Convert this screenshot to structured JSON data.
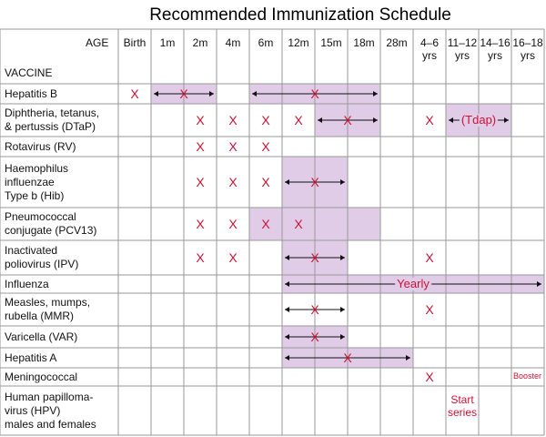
{
  "title": "Recommended Immunization Schedule",
  "header": {
    "age_label": "AGE",
    "vaccine_label": "VACCINE",
    "ages": [
      {
        "l1": "Birth",
        "l2": ""
      },
      {
        "l1": "1m",
        "l2": ""
      },
      {
        "l1": "2m",
        "l2": ""
      },
      {
        "l1": "4m",
        "l2": ""
      },
      {
        "l1": "6m",
        "l2": ""
      },
      {
        "l1": "12m",
        "l2": ""
      },
      {
        "l1": "15m",
        "l2": ""
      },
      {
        "l1": "18m",
        "l2": ""
      },
      {
        "l1": "28m",
        "l2": ""
      },
      {
        "l1": "4–6",
        "l2": "yrs"
      },
      {
        "l1": "11–12",
        "l2": "yrs"
      },
      {
        "l1": "14–16",
        "l2": "yrs"
      },
      {
        "l1": "16–18",
        "l2": "yrs"
      }
    ]
  },
  "colors": {
    "band": "#e1cce8",
    "mark": "#cc1133",
    "grid": "#999999"
  },
  "vaccines": [
    {
      "name": [
        "Hepatitis B"
      ],
      "bands": [
        [
          1,
          2
        ],
        [
          4,
          7
        ]
      ],
      "arrows": [
        [
          1,
          2
        ],
        [
          4,
          7
        ]
      ],
      "marks": [
        {
          "col": 0,
          "text": "X"
        },
        {
          "col": 1.5,
          "text": "X"
        },
        {
          "col": 5.5,
          "text": "X"
        }
      ]
    },
    {
      "name": [
        "Diphtheria, tetanus,",
        "& pertussis (DTaP)"
      ],
      "bands": [
        [
          6,
          7
        ],
        [
          10,
          11
        ]
      ],
      "arrows": [
        [
          6,
          7
        ],
        [
          10,
          11
        ]
      ],
      "marks": [
        {
          "col": 2,
          "text": "X"
        },
        {
          "col": 3,
          "text": "X"
        },
        {
          "col": 4,
          "text": "X"
        },
        {
          "col": 5,
          "text": "X"
        },
        {
          "col": 6.5,
          "text": "X"
        },
        {
          "col": 9,
          "text": "X"
        },
        {
          "col": 10.5,
          "text": "(Tdap)",
          "band": true
        }
      ]
    },
    {
      "name": [
        "Rotavirus (RV)"
      ],
      "bands": [],
      "arrows": [],
      "marks": [
        {
          "col": 2,
          "text": "X"
        },
        {
          "col": 3,
          "text": "X"
        },
        {
          "col": 4,
          "text": "X"
        }
      ]
    },
    {
      "name": [
        "Haemophilus",
        "influenzae",
        "Type b (Hib)"
      ],
      "bands": [
        [
          5,
          6
        ]
      ],
      "arrows": [
        [
          5,
          6
        ]
      ],
      "marks": [
        {
          "col": 2,
          "text": "X"
        },
        {
          "col": 3,
          "text": "X"
        },
        {
          "col": 4,
          "text": "X"
        },
        {
          "col": 5.5,
          "text": "X"
        }
      ]
    },
    {
      "name": [
        "Pneumococcal",
        "conjugate (PCV13)"
      ],
      "bands": [
        [
          4,
          7
        ]
      ],
      "arrows": [],
      "marks": [
        {
          "col": 2,
          "text": "X"
        },
        {
          "col": 3,
          "text": "X"
        },
        {
          "col": 4,
          "text": "X"
        },
        {
          "col": 5,
          "text": "X"
        }
      ]
    },
    {
      "name": [
        "Inactivated",
        "poliovirus (IPV)"
      ],
      "bands": [
        [
          5,
          6
        ]
      ],
      "arrows": [
        [
          5,
          6
        ]
      ],
      "marks": [
        {
          "col": 2,
          "text": "X"
        },
        {
          "col": 3,
          "text": "X"
        },
        {
          "col": 5.5,
          "text": "X"
        },
        {
          "col": 9,
          "text": "X"
        }
      ]
    },
    {
      "name": [
        "Influenza"
      ],
      "bands": [
        [
          5,
          12
        ]
      ],
      "arrows": [
        [
          5,
          12
        ]
      ],
      "marks": [
        {
          "col": 8.5,
          "text": "Yearly",
          "band": true
        }
      ]
    },
    {
      "name": [
        "Measles, mumps,",
        "rubella (MMR)"
      ],
      "bands": [],
      "arrows": [
        [
          5,
          6
        ]
      ],
      "marks": [
        {
          "col": 5.5,
          "text": "X"
        },
        {
          "col": 9,
          "text": "X"
        }
      ]
    },
    {
      "name": [
        "Varicella (VAR)"
      ],
      "bands": [
        [
          5,
          6
        ]
      ],
      "arrows": [
        [
          5,
          6
        ]
      ],
      "marks": [
        {
          "col": 5.5,
          "text": "X"
        }
      ]
    },
    {
      "name": [
        "Hepatitis A"
      ],
      "bands": [
        [
          5,
          8
        ]
      ],
      "arrows": [
        [
          5,
          8
        ]
      ],
      "marks": [
        {
          "col": 6.5,
          "text": "X"
        }
      ]
    },
    {
      "name": [
        "Meningococcal"
      ],
      "bands": [],
      "arrows": [],
      "marks": [
        {
          "col": 9,
          "text": "X"
        },
        {
          "col": 12,
          "text": "Booster",
          "small": true
        }
      ]
    },
    {
      "name": [
        "Human papilloma-",
        "virus (HPV)",
        "males and females"
      ],
      "bands": [],
      "arrows": [],
      "marks": [
        {
          "col": 10,
          "text": "Start series",
          "inline": true
        }
      ]
    }
  ]
}
